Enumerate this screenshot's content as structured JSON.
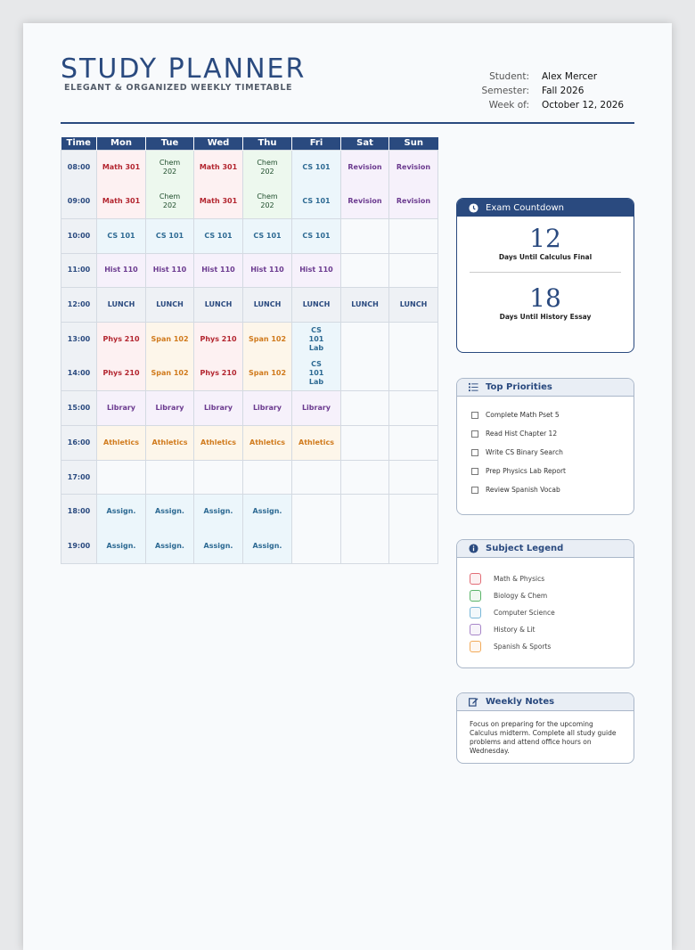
{
  "header": {
    "title": "STUDY PLANNER",
    "subtitle": "ELEGANT & ORGANIZED WEEKLY TIMETABLE",
    "student_label": "Student:",
    "student": "Alex Mercer",
    "semester_label": "Semester:",
    "semester": "Fall 2026",
    "week_label": "Week of:",
    "week": "October 12, 2026"
  },
  "timetable": {
    "headers": [
      "Time",
      "Mon",
      "Tue",
      "Wed",
      "Thu",
      "Fri",
      "Sat",
      "Sun"
    ],
    "rows": [
      {
        "time": "08:00",
        "cells": [
          "Math 301",
          "Chem 202",
          "Math 301",
          "Chem 202",
          "CS 101",
          "Revision",
          "Revision"
        ]
      },
      {
        "time": "09:00",
        "cells": [
          "Math 301",
          "Chem 202",
          "Math 301",
          "Chem 202",
          "CS 101",
          "Revision",
          "Revision"
        ]
      },
      {
        "time": "10:00",
        "cells": [
          "CS 101",
          "CS 101",
          "CS 101",
          "CS 101",
          "CS 101",
          "",
          ""
        ]
      },
      {
        "time": "11:00",
        "cells": [
          "Hist 110",
          "Hist 110",
          "Hist 110",
          "Hist 110",
          "Hist 110",
          "",
          ""
        ]
      },
      {
        "time": "12:00",
        "cells": [
          "LUNCH",
          "LUNCH",
          "LUNCH",
          "LUNCH",
          "LUNCH",
          "LUNCH",
          "LUNCH"
        ]
      },
      {
        "time": "13:00",
        "cells": [
          "Phys 210",
          "Span 102",
          "Phys 210",
          "Span 102",
          "CS 101 Lab",
          "",
          ""
        ]
      },
      {
        "time": "14:00",
        "cells": [
          "Phys 210",
          "Span 102",
          "Phys 210",
          "Span 102",
          "CS 101 Lab",
          "",
          ""
        ]
      },
      {
        "time": "15:00",
        "cells": [
          "Library",
          "Library",
          "Library",
          "Library",
          "Library",
          "",
          ""
        ]
      },
      {
        "time": "16:00",
        "cells": [
          "Athletics",
          "Athletics",
          "Athletics",
          "Athletics",
          "Athletics",
          "",
          ""
        ]
      },
      {
        "time": "17:00",
        "cells": [
          "",
          "",
          "",
          "",
          "",
          "",
          ""
        ]
      },
      {
        "time": "18:00",
        "cells": [
          "Assign.",
          "Assign.",
          "Assign.",
          "Assign.",
          "",
          "",
          ""
        ]
      },
      {
        "time": "19:00",
        "cells": [
          "Assign.",
          "Assign.",
          "Assign.",
          "Assign.",
          "",
          "",
          ""
        ]
      }
    ]
  },
  "countdown": {
    "title": "Exam Countdown",
    "icon": "clock-icon",
    "items": [
      {
        "number": "12",
        "label": "Days Until Calculus Final"
      },
      {
        "number": "18",
        "label": "Days Until History Essay"
      }
    ]
  },
  "priorities": {
    "title": "Top Priorities",
    "icon": "list-icon",
    "items": [
      "Complete Math Pset 5",
      "Read Hist Chapter 12",
      "Write CS Binary Search",
      "Prep Physics Lab Report",
      "Review Spanish Vocab"
    ]
  },
  "legend": {
    "title": "Subject Legend",
    "icon": "info-icon",
    "items": [
      {
        "label": "Math & Physics",
        "color": "#e26d76"
      },
      {
        "label": "Biology & Chem",
        "color": "#5bb56a"
      },
      {
        "label": "Computer Science",
        "color": "#7ab8d8"
      },
      {
        "label": "History & Lit",
        "color": "#a886c9"
      },
      {
        "label": "Spanish & Sports",
        "color": "#f2ab5b"
      }
    ]
  },
  "notes": {
    "title": "Weekly Notes",
    "icon": "edit-icon",
    "text": "Focus on preparing for the upcoming Calculus midterm. Complete all study guide problems and attend office hours on Wednesday."
  },
  "colors": {
    "accent": "#2a4a7f"
  }
}
